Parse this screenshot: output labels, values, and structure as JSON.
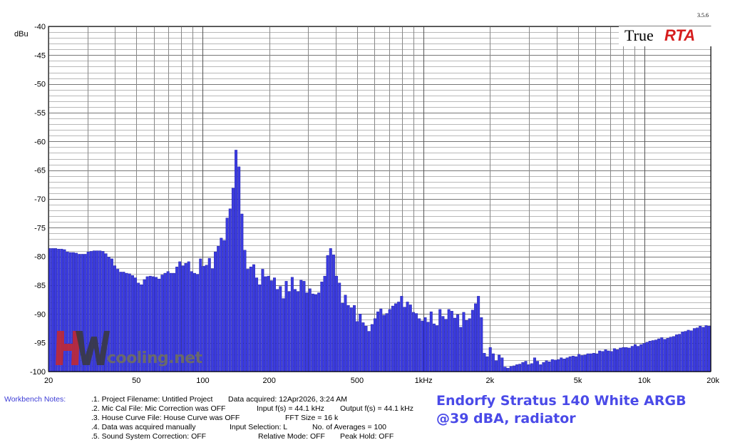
{
  "chart_data": {
    "type": "bar",
    "ylabel": "dBu",
    "ylim": [
      -100,
      -40
    ],
    "xscale": "log",
    "xlim": [
      20,
      20000
    ],
    "grid": true,
    "x_ticks": [
      {
        "value": 20,
        "label": "20"
      },
      {
        "value": 50,
        "label": "50"
      },
      {
        "value": 100,
        "label": "100"
      },
      {
        "value": 200,
        "label": "200"
      },
      {
        "value": 500,
        "label": "500"
      },
      {
        "value": 1000,
        "label": "1kHz"
      },
      {
        "value": 2000,
        "label": "2k"
      },
      {
        "value": 5000,
        "label": "5k"
      },
      {
        "value": 10000,
        "label": "10k"
      },
      {
        "value": 20000,
        "label": "20k"
      }
    ],
    "y_ticks": [
      "-40",
      "-45",
      "-50",
      "-55",
      "-60",
      "-65",
      "-70",
      "-75",
      "-80",
      "-85",
      "-90",
      "-95",
      "-100"
    ],
    "bar_color": "#3b3be0",
    "values": [
      -78.6,
      -78.6,
      -78.6,
      -78.7,
      -78.7,
      -78.8,
      -79.2,
      -79.3,
      -79.3,
      -79.4,
      -79.6,
      -79.6,
      -79.6,
      -79.2,
      -79.1,
      -79.0,
      -79.0,
      -79.0,
      -79.1,
      -79.5,
      -80.1,
      -80.4,
      -81.6,
      -82.2,
      -82.7,
      -82.7,
      -82.9,
      -83.0,
      -83.3,
      -83.7,
      -84.6,
      -84.9,
      -84.0,
      -83.5,
      -83.4,
      -83.5,
      -83.6,
      -83.9,
      -83.2,
      -82.9,
      -82.6,
      -82.9,
      -82.9,
      -81.8,
      -80.9,
      -81.6,
      -81.2,
      -80.9,
      -82.6,
      -82.9,
      -83.1,
      -80.4,
      -81.7,
      -81.5,
      -80.3,
      -82.1,
      -79.2,
      -78.2,
      -76.8,
      -77.2,
      -73.3,
      -71.7,
      -68.1,
      -61.5,
      -64.4,
      -72.6,
      -78.9,
      -82.2,
      -81.8,
      -81.4,
      -83.7,
      -84.9,
      -82.2,
      -83.5,
      -83.4,
      -84.2,
      -83.7,
      -85.7,
      -85.2,
      -87.3,
      -84.3,
      -86.1,
      -83.6,
      -85.7,
      -86.1,
      -84.1,
      -84.3,
      -86.3,
      -85.6,
      -86.5,
      -86.6,
      -86.3,
      -84.4,
      -83.4,
      -79.8,
      -78.6,
      -79.7,
      -83.4,
      -84.6,
      -88.1,
      -86.7,
      -88.5,
      -88.9,
      -88.5,
      -91.3,
      -90.0,
      -91.5,
      -92.1,
      -93.0,
      -91.8,
      -90.8,
      -89.6,
      -89.1,
      -90.2,
      -89.9,
      -89.2,
      -88.6,
      -88.2,
      -87.9,
      -86.9,
      -88.8,
      -87.9,
      -88.4,
      -89.7,
      -89.9,
      -90.8,
      -91.2,
      -90.6,
      -91.4,
      -89.6,
      -91.7,
      -92.0,
      -89.2,
      -90.4,
      -90.9,
      -89.2,
      -89.5,
      -90.7,
      -90.1,
      -92.3,
      -89.7,
      -91.1,
      -90.8,
      -89.3,
      -88.2,
      -86.9,
      -90.6,
      -96.8,
      -97.4,
      -95.8,
      -96.9,
      -98.1,
      -97.1,
      -97.6,
      -99.2,
      -99.4,
      -99.1,
      -99.0,
      -98.8,
      -98.7,
      -98.4,
      -98.2,
      -98.8,
      -98.6,
      -97.6,
      -98.2,
      -98.8,
      -98.4,
      -98.1,
      -98.3,
      -97.9,
      -98.0,
      -97.9,
      -97.6,
      -97.8,
      -97.6,
      -97.4,
      -97.3,
      -97.4,
      -97.0,
      -97.2,
      -97.1,
      -96.9,
      -96.9,
      -96.8,
      -96.9,
      -96.4,
      -96.5,
      -96.2,
      -96.4,
      -96.5,
      -96.0,
      -96.2,
      -95.9,
      -95.8,
      -95.8,
      -95.9,
      -95.6,
      -95.3,
      -95.6,
      -95.3,
      -95.1,
      -94.9,
      -94.7,
      -94.6,
      -94.5,
      -94.3,
      -94.1,
      -94.4,
      -94.2,
      -94.0,
      -93.9,
      -93.6,
      -93.5,
      -93.1,
      -93.0,
      -92.8,
      -92.9,
      -92.5,
      -92.4,
      -92.1,
      -92.3,
      -92.0,
      -92.1
    ]
  },
  "version": "3.5.6",
  "logo": {
    "part1": "True",
    "part2": "RTA"
  },
  "watermark": {
    "text": "cooling.net"
  },
  "notes": {
    "title": "Workbench Notes:",
    "line1": ".1. Project Filename: Untitled Project",
    "line2": ".2. Mic Cal File: Mic Correction was OFF",
    "line3": ".3. House Curve File: House Curve was OFF",
    "line4": ".4. Data was acquired manually",
    "line5": ".5. Sound System Correction: OFF",
    "acquired": "Data acquired: 12Apr2026, 3:24 AM",
    "input_fs": "Input f(s) = 44.1 kHz",
    "output_fs": "Output f(s) = 44.1 kHz",
    "fft_size": "FFT Size = 16 k",
    "input_sel": "Input Selection: L",
    "averages": "No. of Averages = 100",
    "relative": "Relative Mode:  OFF",
    "peak_hold": "Peak Hold: OFF"
  },
  "caption": {
    "line1": "Endorfy Stratus 140 White ARGB",
    "line2": "@39 dBA, radiator"
  }
}
